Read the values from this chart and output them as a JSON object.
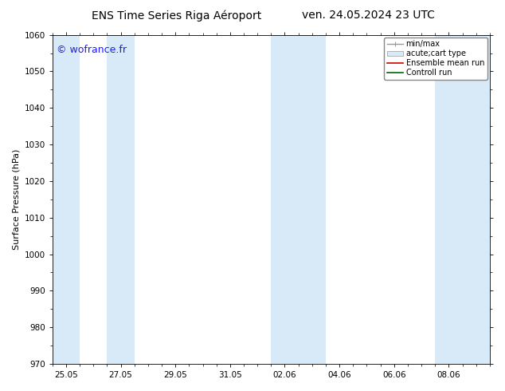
{
  "title_left": "ENS Time Series Riga Aéroport",
  "title_right": "ven. 24.05.2024 23 UTC",
  "ylabel": "Surface Pressure (hPa)",
  "ylim": [
    970,
    1060
  ],
  "yticks": [
    970,
    980,
    990,
    1000,
    1010,
    1020,
    1030,
    1040,
    1050,
    1060
  ],
  "xtick_labels": [
    "25.05",
    "27.05",
    "29.05",
    "31.05",
    "02.06",
    "04.06",
    "06.06",
    "08.06"
  ],
  "xtick_positions": [
    0,
    2,
    4,
    6,
    8,
    10,
    12,
    14
  ],
  "xmin": -0.5,
  "xmax": 15.5,
  "watermark": "© wofrance.fr",
  "watermark_color": "#1a1aff",
  "background_color": "#ffffff",
  "plot_bg_color": "#ffffff",
  "shaded_bands": [
    {
      "xstart": -0.5,
      "xend": 0.5,
      "color": "#d8eaf8"
    },
    {
      "xstart": 1.5,
      "xend": 2.5,
      "color": "#d8eaf8"
    },
    {
      "xstart": 7.5,
      "xend": 8.5,
      "color": "#d8eaf8"
    },
    {
      "xstart": 8.5,
      "xend": 9.5,
      "color": "#d8eaf8"
    },
    {
      "xstart": 13.5,
      "xend": 14.5,
      "color": "#d8eaf8"
    },
    {
      "xstart": 14.5,
      "xend": 15.5,
      "color": "#d8eaf8"
    }
  ],
  "legend_entries": [
    {
      "label": "min/max",
      "color": "#999999",
      "type": "errorbar"
    },
    {
      "label": "acute;cart type",
      "color": "#d8eaf8",
      "type": "bar"
    },
    {
      "label": "Ensemble mean run",
      "color": "#cc0000",
      "type": "line"
    },
    {
      "label": "Controll run",
      "color": "#006600",
      "type": "line"
    }
  ],
  "font_size_title": 10,
  "font_size_axis": 8,
  "font_size_tick": 7.5,
  "font_size_legend": 7,
  "font_size_watermark": 9
}
